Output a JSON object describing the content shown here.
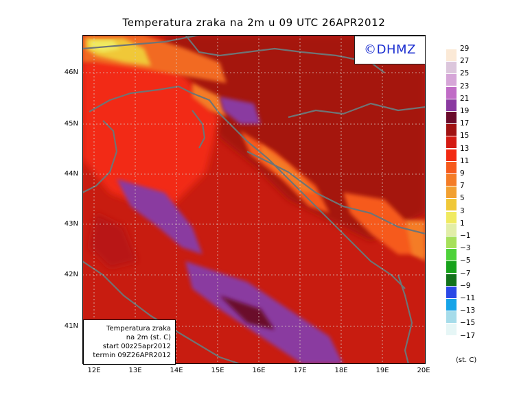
{
  "title": "Temperatura zraka na 2m u 09 UTC 26APR2012",
  "brand": "©DHMZ",
  "info_box": [
    "Temperatura zraka",
    "na 2m (st. C)",
    "start 00z25apr2012",
    "termin 09Z26APR2012"
  ],
  "lat_labels": [
    "46N",
    "45N",
    "44N",
    "43N",
    "42N",
    "41N"
  ],
  "lon_labels": [
    "12E",
    "13E",
    "14E",
    "15E",
    "16E",
    "17E",
    "18E",
    "19E",
    "20E"
  ],
  "colorbar": {
    "labels": [
      "29",
      "27",
      "25",
      "23",
      "21",
      "19",
      "17",
      "15",
      "13",
      "11",
      "9",
      "7",
      "5",
      "3",
      "1",
      "−1",
      "−3",
      "−5",
      "−7",
      "−9",
      "−11",
      "−13",
      "−15",
      "−17"
    ],
    "colors": [
      "#fbe9d6",
      "#dcc6dc",
      "#d6a6d8",
      "#c06cc6",
      "#8a3aa0",
      "#6a0a2a",
      "#a01212",
      "#d41a12",
      "#f22a12",
      "#f65a1c",
      "#f47c26",
      "#f2a030",
      "#f0c838",
      "#f0ea60",
      "#e2eea8",
      "#a6e05a",
      "#4ed23a",
      "#16a21a",
      "#12721a",
      "#2a48e6",
      "#16a4e8",
      "#a6dcea",
      "#e6f6f6"
    ],
    "unit": "(st. C)"
  },
  "colors": {
    "sea": "#c81c10",
    "land": "#d8200f",
    "coast": "#6f7475"
  }
}
